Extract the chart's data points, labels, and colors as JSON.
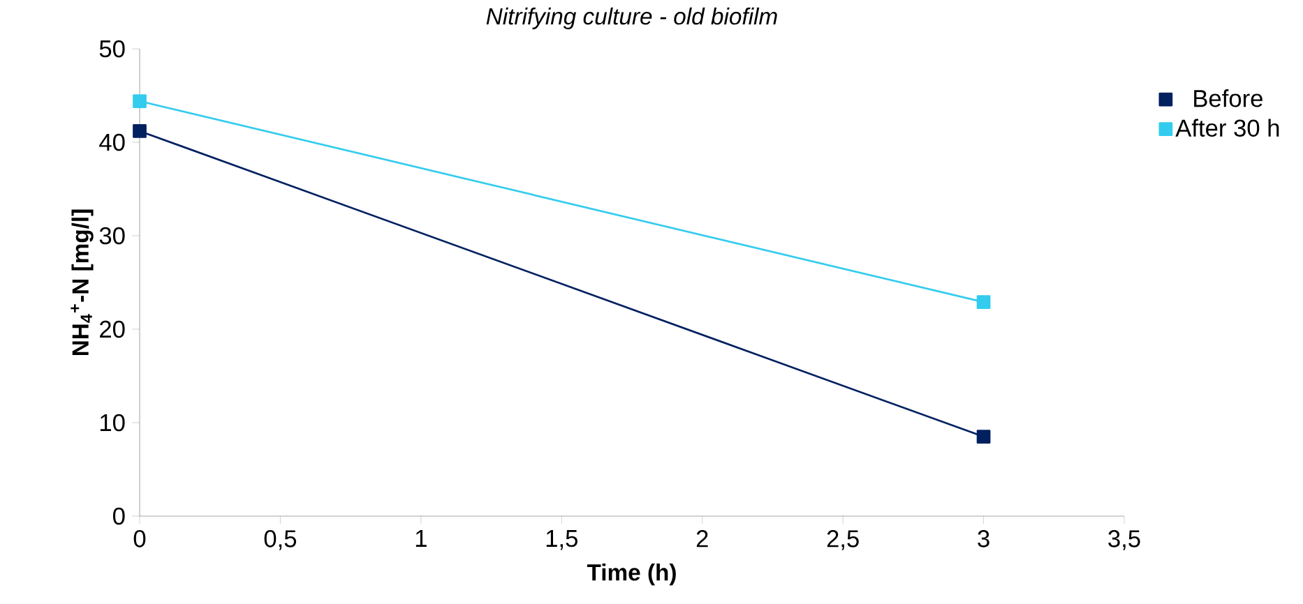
{
  "chart_data": {
    "type": "line",
    "title": "Nitrifying culture - old biofilm",
    "xlabel": "Time (h)",
    "ylabel": "NH$_{4}$$^{+}$-N [mg/l]",
    "x": [
      0,
      3
    ],
    "series": [
      {
        "name": "Before",
        "color": "#002060",
        "values": [
          41.2,
          8.5
        ]
      },
      {
        "name": "After 30 h",
        "color": "#33ccee",
        "values": [
          44.4,
          22.9
        ]
      }
    ],
    "xlim": [
      0,
      3.5
    ],
    "ylim": [
      0,
      50
    ],
    "xticks": [
      0,
      {
        "value": 0.5,
        "label": "0,5"
      },
      1,
      {
        "value": 1.5,
        "label": "1,5"
      },
      2,
      {
        "value": 2.5,
        "label": "2,5"
      },
      3,
      {
        "value": 3.5,
        "label": "3,5"
      }
    ],
    "yticks": [
      0,
      10,
      20,
      30,
      40,
      50
    ],
    "legend": "right",
    "marker": "square",
    "line_style": "solid",
    "grid": false
  }
}
